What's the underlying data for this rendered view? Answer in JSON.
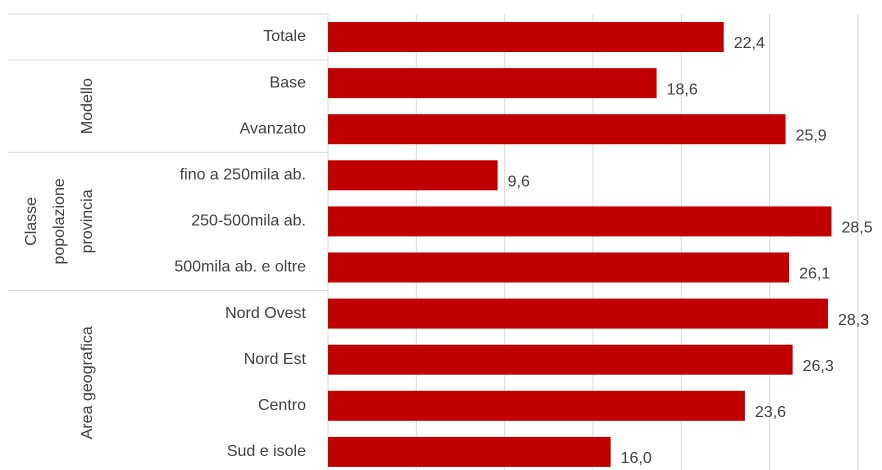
{
  "chart_data": {
    "type": "bar",
    "categories": [
      "Totale",
      "Base",
      "Avanzato",
      "fino a 250mila ab.",
      "250-500mila ab.",
      "500mila ab. e oltre",
      "Nord Ovest",
      "Nord Est",
      "Centro",
      "Sud e isole"
    ],
    "values": [
      22.4,
      18.6,
      25.9,
      9.6,
      28.5,
      26.1,
      28.3,
      26.3,
      23.6,
      16.0
    ],
    "value_labels": [
      "22,4",
      "18,6",
      "25,9",
      "9,6",
      "28,5",
      "26,1",
      "28,3",
      "26,3",
      "23,6",
      "16,0"
    ],
    "groups": [
      {
        "label": [
          "Modello"
        ],
        "members": [
          "Base",
          "Avanzato"
        ]
      },
      {
        "label": [
          "Classe",
          "popolazione",
          "provincia"
        ],
        "members": [
          "fino a 250mila ab.",
          "250-500mila ab.",
          "500mila ab. e oltre"
        ]
      },
      {
        "label": [
          "Area geografica"
        ],
        "members": [
          "Nord Ovest",
          "Nord Est",
          "Centro",
          "Sud e isole"
        ]
      }
    ],
    "color": "#c00000",
    "xlim": [
      0,
      30
    ],
    "xticks": [
      0,
      5,
      10,
      15,
      20,
      25,
      30
    ],
    "grid": true
  }
}
